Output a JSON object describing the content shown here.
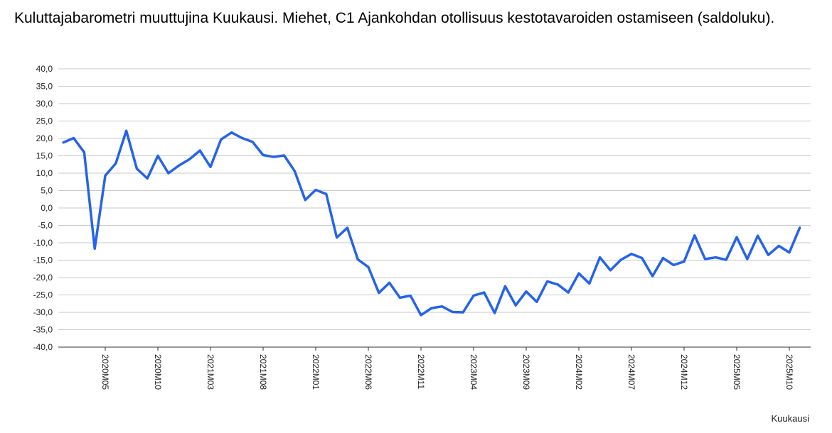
{
  "chart_data": {
    "type": "line",
    "title": "Kuluttajabarometri muuttujina Kuukausi. Miehet, C1 Ajankohdan otollisuus kestotavaroiden ostamiseen (saldoluku).",
    "xlabel": "Kuukausi",
    "ylabel": "",
    "ylim": [
      -40,
      40
    ],
    "y_ticks": [
      "40,0",
      "35,0",
      "30,0",
      "25,0",
      "20,0",
      "15,0",
      "10,0",
      "5,0",
      "0,0",
      "-5,0",
      "-10,0",
      "-15,0",
      "-20,0",
      "-25,0",
      "-30,0",
      "-35,0",
      "-40,0"
    ],
    "x_tick_labels": [
      "2020M05",
      "2020M10",
      "2021M03",
      "2021M08",
      "2022M01",
      "2022M06",
      "2022M11",
      "2023M04",
      "2023M09",
      "2024M02",
      "2024M07",
      "2024M12",
      "2025M05",
      "2025M10"
    ],
    "grid": true,
    "line_color": "#2563eb",
    "x_start": "2020M01",
    "x_end": "2025M11",
    "values": [
      18.8,
      20.1,
      16.0,
      -11.7,
      9.3,
      12.8,
      22.2,
      11.3,
      8.5,
      15.0,
      10.0,
      12.2,
      14.0,
      16.5,
      11.8,
      19.7,
      21.7,
      20.1,
      19.0,
      15.2,
      14.7,
      15.1,
      10.6,
      2.3,
      5.2,
      4.0,
      -8.5,
      -5.7,
      -14.8,
      -17.0,
      -24.4,
      -21.5,
      -25.8,
      -25.2,
      -30.8,
      -28.8,
      -28.3,
      -29.9,
      -30.0,
      -25.2,
      -24.3,
      -30.2,
      -22.5,
      -28.0,
      -24.0,
      -27.0,
      -21.1,
      -22.0,
      -24.3,
      -18.8,
      -21.7,
      -14.2,
      -17.9,
      -14.9,
      -13.2,
      -14.4,
      -19.6,
      -14.4,
      -16.4,
      -15.4,
      -7.9,
      -14.7,
      -14.2,
      -14.9,
      -8.4,
      -14.7,
      -8.0,
      -13.5,
      -10.9,
      -12.8,
      -5.6
    ]
  }
}
